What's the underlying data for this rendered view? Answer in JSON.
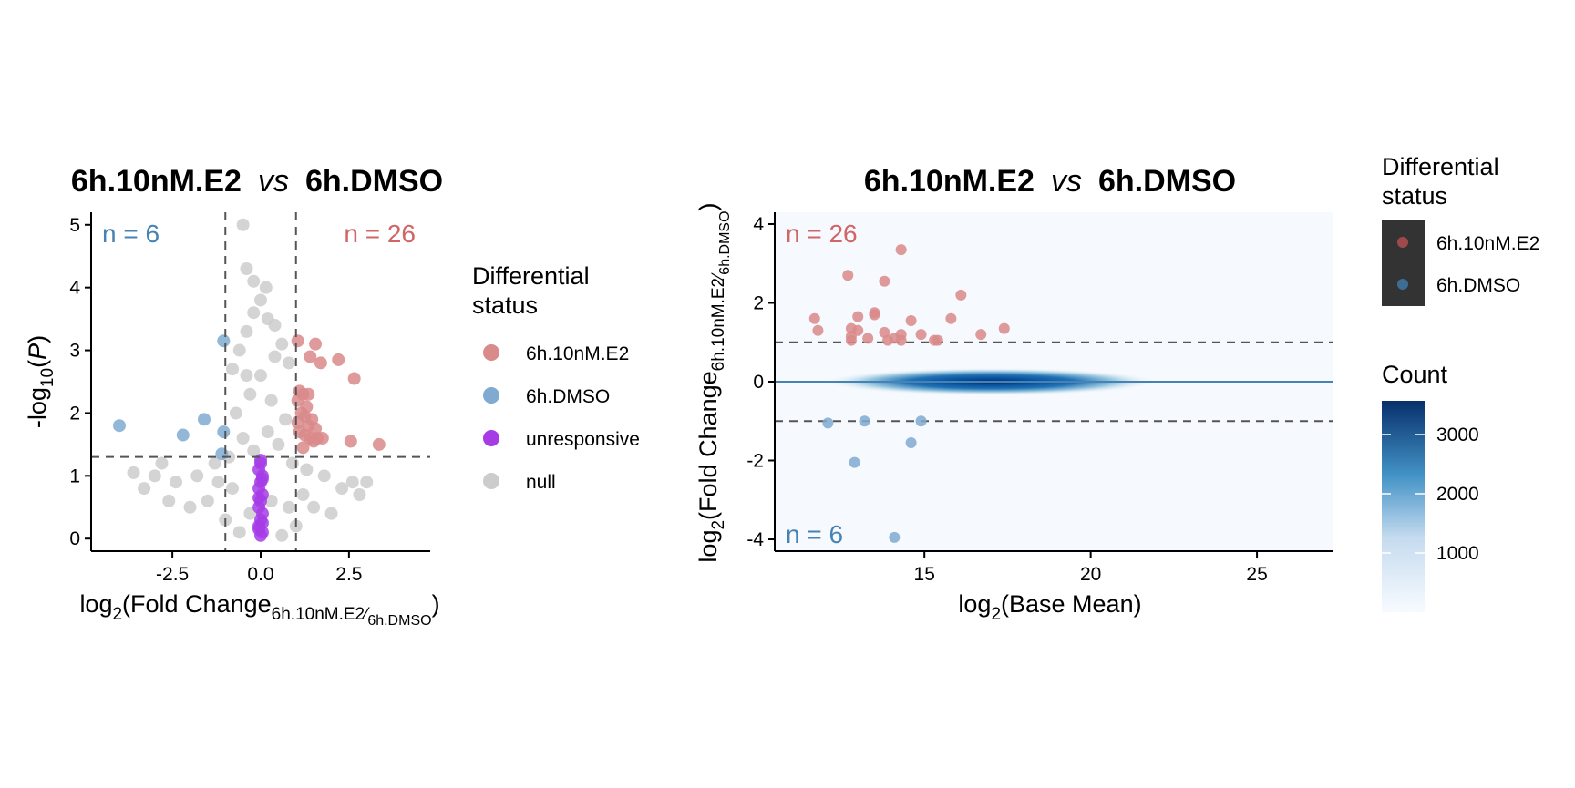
{
  "colors": {
    "up": "#d98a8a",
    "down": "#80aad0",
    "unresponsive": "#a53ce6",
    "null": "#cccccc",
    "threshold_line": "#555555",
    "up_text": "#d06665",
    "down_text": "#4682b4",
    "ma_zero_line": "#4682b4",
    "density_low": "#f6f9fd",
    "density_high": "#08306b"
  },
  "volcano": {
    "title_a": "6h.10nM.E2",
    "title_vs": "vs",
    "title_b": "6h.DMSO",
    "xlabel_main": "log",
    "xlabel_sub": "2",
    "xlabel_rest": "(Fold Change",
    "xlabel_frac_num": "6h.10nM.E2",
    "xlabel_frac_den": "6h.DMSO",
    "xlabel_close": ")",
    "ylabel_main": "-log",
    "ylabel_sub": "10",
    "ylabel_open": "(",
    "ylabel_p": "P",
    "ylabel_close": ")",
    "count_down": "n = 6",
    "count_up": "n = 26",
    "legend": {
      "title_line1": "Differential",
      "title_line2": "status",
      "items": [
        {
          "label": "6h.10nM.E2",
          "color_key": "up"
        },
        {
          "label": "6h.DMSO",
          "color_key": "down"
        },
        {
          "label": "unresponsive",
          "color_key": "unresponsive"
        },
        {
          "label": "null",
          "color_key": "null"
        }
      ]
    }
  },
  "ma": {
    "title_a": "6h.10nM.E2",
    "title_vs": "vs",
    "title_b": "6h.DMSO",
    "xlabel_main": "log",
    "xlabel_sub": "2",
    "xlabel_rest": "(Base Mean)",
    "ylabel_main": "log",
    "ylabel_sub": "2",
    "ylabel_rest": "(Fold Change",
    "ylabel_frac_num": "6h.10nM.E2",
    "ylabel_frac_den": "6h.DMSO",
    "ylabel_close": ")",
    "count_up": "n = 26",
    "count_down": "n = 6",
    "legend": {
      "title_line1": "Differential",
      "title_line2": "status",
      "items": [
        {
          "label": "6h.10nM.E2",
          "color_key": "up"
        },
        {
          "label": "6h.DMSO",
          "color_key": "down"
        }
      ],
      "count_title": "Count",
      "count_ticks": [
        "3000",
        "2000",
        "1000"
      ]
    }
  },
  "chart_data": [
    {
      "type": "scatter",
      "name": "volcano",
      "x_label": "log2(Fold Change 6h.10nM.E2/6h.DMSO)",
      "y_label": "-log10(P)",
      "xlim": [
        -4.8,
        4.8
      ],
      "ylim": [
        -0.2,
        5.2
      ],
      "x_ticks": [
        -2.5,
        0.0,
        2.5
      ],
      "x_tick_labels": [
        "-2.5",
        "0.0",
        "2.5"
      ],
      "y_ticks": [
        0,
        1,
        2,
        3,
        4,
        5
      ],
      "y_tick_labels": [
        "0",
        "1",
        "2",
        "3",
        "4",
        "5"
      ],
      "thresholds": {
        "x": [
          -1,
          1
        ],
        "y": 1.3
      },
      "grid": false,
      "legend_position": "right",
      "series": [
        {
          "name": "6h.10nM.E2",
          "points": [
            [
              1.05,
              3.15
            ],
            [
              1.55,
              3.1
            ],
            [
              1.4,
              2.9
            ],
            [
              1.7,
              2.8
            ],
            [
              2.2,
              2.85
            ],
            [
              2.65,
              2.55
            ],
            [
              1.1,
              2.35
            ],
            [
              1.2,
              2.3
            ],
            [
              1.35,
              2.3
            ],
            [
              1.05,
              2.2
            ],
            [
              1.3,
              2.1
            ],
            [
              1.15,
              2.0
            ],
            [
              1.25,
              1.95
            ],
            [
              1.45,
              1.9
            ],
            [
              1.05,
              1.85
            ],
            [
              1.35,
              1.8
            ],
            [
              1.55,
              1.75
            ],
            [
              1.1,
              1.7
            ],
            [
              1.25,
              1.65
            ],
            [
              1.4,
              1.6
            ],
            [
              1.6,
              1.6
            ],
            [
              1.75,
              1.6
            ],
            [
              1.5,
              1.55
            ],
            [
              1.2,
              1.45
            ],
            [
              2.55,
              1.55
            ],
            [
              3.35,
              1.5
            ]
          ]
        },
        {
          "name": "6h.DMSO",
          "points": [
            [
              -4.0,
              1.8
            ],
            [
              -2.2,
              1.65
            ],
            [
              -1.6,
              1.9
            ],
            [
              -1.05,
              3.15
            ],
            [
              -1.05,
              1.7
            ],
            [
              -1.1,
              1.35
            ]
          ]
        },
        {
          "name": "unresponsive",
          "points": [
            [
              0.0,
              1.2
            ],
            [
              -0.05,
              1.1
            ],
            [
              0.05,
              1.0
            ],
            [
              0.0,
              0.9
            ],
            [
              -0.05,
              0.8
            ],
            [
              0.05,
              0.7
            ],
            [
              0.0,
              0.6
            ],
            [
              -0.05,
              0.5
            ],
            [
              0.05,
              0.4
            ],
            [
              0.0,
              0.3
            ],
            [
              -0.05,
              0.2
            ],
            [
              0.05,
              0.1
            ],
            [
              0.0,
              0.05
            ],
            [
              0.0,
              1.25
            ],
            [
              0.05,
              0.95
            ],
            [
              -0.05,
              0.65
            ],
            [
              0.05,
              0.25
            ],
            [
              -0.05,
              0.15
            ]
          ]
        },
        {
          "name": "null",
          "points": [
            [
              -0.5,
              5.0
            ],
            [
              -0.4,
              4.3
            ],
            [
              -0.2,
              4.1
            ],
            [
              0.15,
              4.0
            ],
            [
              0.0,
              3.8
            ],
            [
              -0.2,
              3.6
            ],
            [
              0.2,
              3.5
            ],
            [
              -0.4,
              3.3
            ],
            [
              0.4,
              3.4
            ],
            [
              -0.6,
              3.0
            ],
            [
              0.6,
              3.1
            ],
            [
              -0.8,
              2.7
            ],
            [
              0.8,
              2.8
            ],
            [
              0.0,
              2.6
            ],
            [
              -0.3,
              2.3
            ],
            [
              0.3,
              2.2
            ],
            [
              -0.7,
              2.0
            ],
            [
              0.7,
              1.9
            ],
            [
              -0.5,
              1.6
            ],
            [
              0.5,
              1.5
            ],
            [
              -0.9,
              1.3
            ],
            [
              0.9,
              1.2
            ],
            [
              -1.3,
              1.2
            ],
            [
              1.3,
              1.1
            ],
            [
              -1.8,
              1.0
            ],
            [
              1.8,
              1.0
            ],
            [
              -2.4,
              0.9
            ],
            [
              2.3,
              0.8
            ],
            [
              -3.0,
              1.0
            ],
            [
              -3.6,
              1.05
            ],
            [
              -2.8,
              1.2
            ],
            [
              2.8,
              0.7
            ],
            [
              -1.5,
              0.6
            ],
            [
              1.5,
              0.5
            ],
            [
              -2.0,
              0.5
            ],
            [
              2.0,
              0.4
            ],
            [
              -1.0,
              0.3
            ],
            [
              1.0,
              0.2
            ],
            [
              -0.6,
              0.1
            ],
            [
              0.6,
              0.05
            ],
            [
              -0.3,
              0.4
            ],
            [
              0.3,
              0.6
            ],
            [
              -0.8,
              0.8
            ],
            [
              0.8,
              0.5
            ],
            [
              -1.2,
              0.9
            ],
            [
              1.2,
              0.7
            ],
            [
              -0.2,
              1.4
            ],
            [
              0.2,
              1.7
            ],
            [
              -0.4,
              2.6
            ],
            [
              0.4,
              2.9
            ],
            [
              -2.6,
              0.6
            ],
            [
              2.6,
              0.9
            ],
            [
              3.0,
              0.9
            ],
            [
              -3.3,
              0.8
            ]
          ]
        }
      ]
    },
    {
      "type": "scatter",
      "name": "MA",
      "x_label": "log2(Base Mean)",
      "y_label": "log2(Fold Change 6h.10nM.E2/6h.DMSO)",
      "xlim": [
        10.5,
        27.3
      ],
      "ylim": [
        -4.3,
        4.3
      ],
      "x_ticks": [
        15,
        20,
        25
      ],
      "x_tick_labels": [
        "15",
        "20",
        "25"
      ],
      "y_ticks": [
        -4,
        -2,
        0,
        2,
        4
      ],
      "y_tick_labels": [
        "-4",
        "-2",
        "0",
        "2",
        "4"
      ],
      "thresholds": {
        "y": [
          -1,
          1
        ]
      },
      "density_center": [
        17.0,
        0.0
      ],
      "count_range": [
        0,
        3600
      ],
      "grid": false,
      "legend_position": "right",
      "series": [
        {
          "name": "6h.10nM.E2",
          "points": [
            [
              14.3,
              3.35
            ],
            [
              12.7,
              2.7
            ],
            [
              13.8,
              2.55
            ],
            [
              16.1,
              2.2
            ],
            [
              11.7,
              1.6
            ],
            [
              12.8,
              1.35
            ],
            [
              13.0,
              1.65
            ],
            [
              13.5,
              1.75
            ],
            [
              13.5,
              1.7
            ],
            [
              14.6,
              1.55
            ],
            [
              15.8,
              1.6
            ],
            [
              11.8,
              1.3
            ],
            [
              12.8,
              1.15
            ],
            [
              13.0,
              1.3
            ],
            [
              13.8,
              1.25
            ],
            [
              14.3,
              1.2
            ],
            [
              14.9,
              1.2
            ],
            [
              16.7,
              1.2
            ],
            [
              17.4,
              1.35
            ],
            [
              12.8,
              1.05
            ],
            [
              13.3,
              1.1
            ],
            [
              13.9,
              1.05
            ],
            [
              14.3,
              1.05
            ],
            [
              15.3,
              1.05
            ],
            [
              15.4,
              1.05
            ],
            [
              14.1,
              1.1
            ]
          ]
        },
        {
          "name": "6h.DMSO",
          "points": [
            [
              12.1,
              -1.05
            ],
            [
              13.2,
              -1.0
            ],
            [
              14.9,
              -1.0
            ],
            [
              14.6,
              -1.55
            ],
            [
              12.9,
              -2.05
            ],
            [
              14.1,
              -3.95
            ]
          ]
        }
      ]
    }
  ]
}
